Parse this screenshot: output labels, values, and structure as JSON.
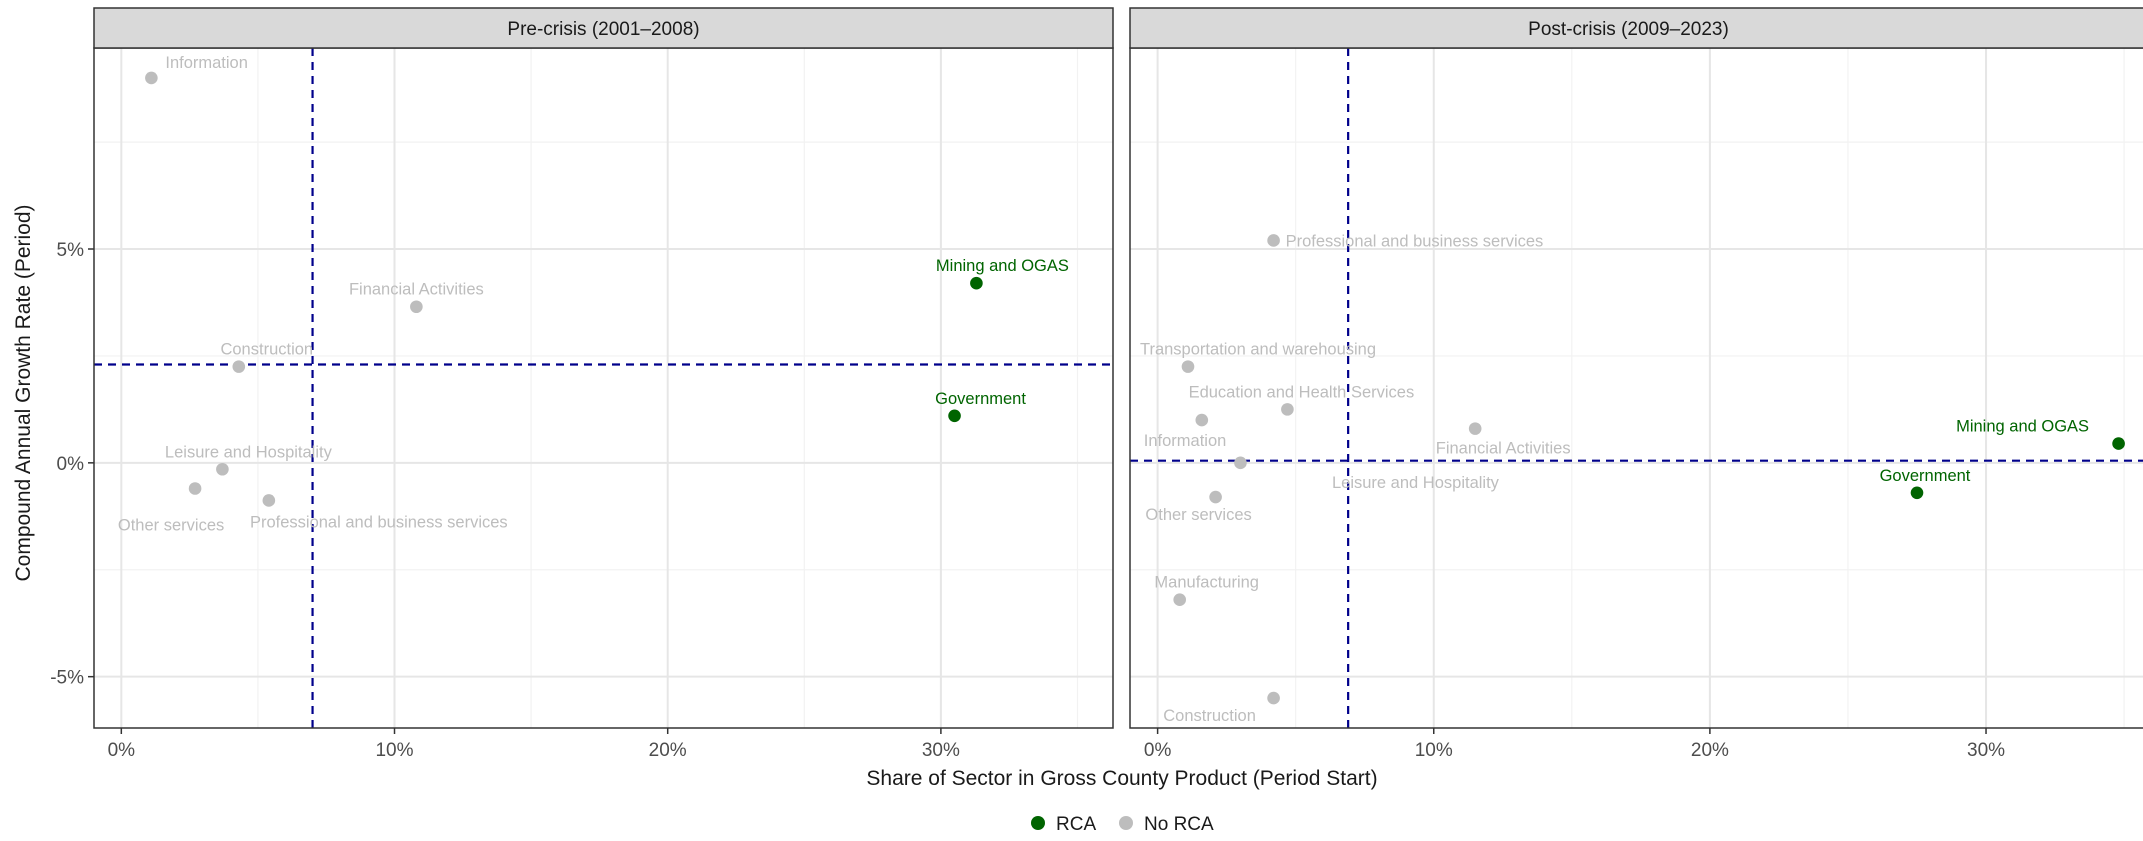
{
  "chart_data": {
    "type": "scatter",
    "x_axis": {
      "label": "Share of Sector in Gross County Product (Period Start)",
      "ticks": [
        0,
        10,
        20,
        30
      ],
      "tick_labels": [
        "0%",
        "10%",
        "20%",
        "30%"
      ],
      "lim": [
        -1,
        36.3
      ]
    },
    "y_axis": {
      "label": "Compound Annual Growth Rate (Period)",
      "ticks": [
        -5,
        0,
        5
      ],
      "tick_labels": [
        "-5%",
        "0%",
        "5%"
      ],
      "lim": [
        -6.2,
        9.7
      ]
    },
    "grid": true,
    "legend": {
      "position": "bottom",
      "entries": [
        {
          "label": "RCA",
          "color": "#006400"
        },
        {
          "label": "No RCA",
          "color": "#bdbdbd"
        }
      ]
    },
    "panels": [
      {
        "title": "Pre-crisis (2001–2008)",
        "ref_x": 7.0,
        "ref_y": 2.3,
        "points": [
          {
            "label": "Information",
            "x": 1.1,
            "y": 9.0,
            "rca": false
          },
          {
            "label": "Financial Activities",
            "x": 10.8,
            "y": 3.65,
            "rca": false
          },
          {
            "label": "Mining and OGAS",
            "x": 31.3,
            "y": 4.2,
            "rca": true
          },
          {
            "label": "Construction",
            "x": 4.3,
            "y": 2.25,
            "rca": false
          },
          {
            "label": "Government",
            "x": 30.5,
            "y": 1.1,
            "rca": true
          },
          {
            "label": "Leisure and Hospitality",
            "x": 3.7,
            "y": -0.15,
            "rca": false
          },
          {
            "label": "Other services",
            "x": 2.7,
            "y": -0.6,
            "rca": false
          },
          {
            "label": "Professional and business services",
            "x": 5.4,
            "y": -0.88,
            "rca": false
          }
        ]
      },
      {
        "title": "Post-crisis (2009–2023)",
        "ref_x": 6.9,
        "ref_y": 0.05,
        "points": [
          {
            "label": "Professional and business services",
            "x": 4.2,
            "y": 5.2,
            "rca": false
          },
          {
            "label": "Transportation and warehousing",
            "x": 1.1,
            "y": 2.25,
            "rca": false
          },
          {
            "label": "Education and Health Services",
            "x": 4.7,
            "y": 1.25,
            "rca": false
          },
          {
            "label": "Information",
            "x": 1.6,
            "y": 1.0,
            "rca": false
          },
          {
            "label": "Financial Activities",
            "x": 11.5,
            "y": 0.8,
            "rca": false
          },
          {
            "label": "Mining and OGAS",
            "x": 34.8,
            "y": 0.45,
            "rca": true
          },
          {
            "label": "Leisure and Hospitality",
            "x": 3.0,
            "y": 0.0,
            "rca": false
          },
          {
            "label": "Government",
            "x": 27.5,
            "y": -0.7,
            "rca": true
          },
          {
            "label": "Other services",
            "x": 2.1,
            "y": -0.8,
            "rca": false
          },
          {
            "label": "Manufacturing",
            "x": 0.8,
            "y": -3.2,
            "rca": false
          },
          {
            "label": "Construction",
            "x": 4.2,
            "y": -5.5,
            "rca": false
          }
        ]
      }
    ]
  }
}
